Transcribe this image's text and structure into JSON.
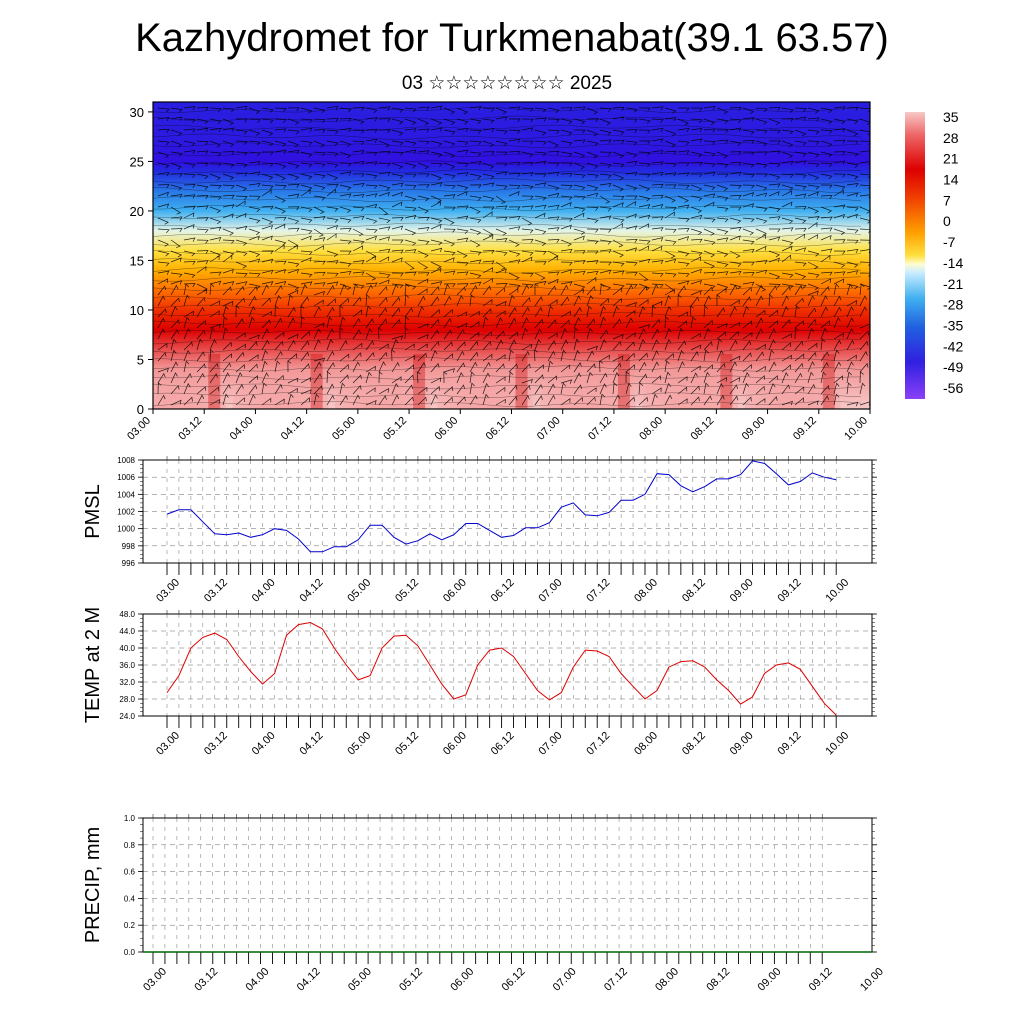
{
  "title": "Kazhydromet for Turkmenabat(39.1 63.57)",
  "subtitle": "03 ☆☆☆☆☆☆☆☆ 2025",
  "chart_data": [
    {
      "type": "heatmap",
      "title": "",
      "ylabel": "",
      "xticks": [
        "03.00",
        "03.12",
        "04.00",
        "04.12",
        "05.00",
        "05.12",
        "06.00",
        "06.12",
        "07.00",
        "07.12",
        "08.00",
        "08.12",
        "09.00",
        "09.12",
        "10.00"
      ],
      "ylim": [
        0,
        31
      ],
      "yticks": [
        0,
        5,
        10,
        15,
        20,
        25,
        30
      ],
      "colorbar": {
        "labels": [
          "35",
          "28",
          "21",
          "14",
          "7",
          "0",
          "-7",
          "-14",
          "-21",
          "-28",
          "-35",
          "-42",
          "-49",
          "-56"
        ],
        "values": [
          35,
          28,
          21,
          14,
          7,
          0,
          -7,
          -14,
          -21,
          -28,
          -35,
          -42,
          -49,
          -56
        ]
      },
      "temperature_profile": [
        {
          "level": 0,
          "value": 35
        },
        {
          "level": 4,
          "value": 32
        },
        {
          "level": 8,
          "value": 24
        },
        {
          "level": 10,
          "value": 18
        },
        {
          "level": 12,
          "value": 12
        },
        {
          "level": 14,
          "value": 5
        },
        {
          "level": 16,
          "value": -2
        },
        {
          "level": 18,
          "value": -10
        },
        {
          "level": 20,
          "value": -20
        },
        {
          "level": 22,
          "value": -32
        },
        {
          "level": 24,
          "value": -46
        },
        {
          "level": 25,
          "value": -55
        },
        {
          "level": 27,
          "value": -52
        },
        {
          "level": 31,
          "value": -50
        }
      ]
    },
    {
      "type": "line",
      "ylabel": "PMSL",
      "ylim": [
        996,
        1008
      ],
      "yticks": [
        "996",
        "998",
        "1000",
        "1002",
        "1004",
        "1006",
        "1008"
      ],
      "xticks": [
        "03.00",
        "03.12",
        "04.00",
        "04.12",
        "05.00",
        "05.12",
        "06.00",
        "06.12",
        "07.00",
        "07.12",
        "08.00",
        "08.12",
        "09.00",
        "09.12",
        "10.00"
      ],
      "color": "#0000cc",
      "x_hours": [
        0,
        3,
        6,
        9,
        12,
        15,
        18,
        21,
        24,
        27,
        30,
        33,
        36,
        39,
        42,
        45,
        48,
        51,
        54,
        57,
        60,
        63,
        66,
        69,
        72,
        75,
        78,
        81,
        84,
        87,
        90,
        93,
        96,
        99,
        102,
        105,
        108,
        111,
        114,
        117,
        120,
        123,
        126,
        129,
        132,
        135,
        138,
        141,
        144,
        147,
        150,
        153,
        156,
        159,
        162,
        165,
        168
      ],
      "values": [
        1001.7,
        1002.2,
        1002.2,
        1000.8,
        999.4,
        999.3,
        999.5,
        999.0,
        999.3,
        1000.0,
        999.8,
        998.8,
        997.3,
        997.3,
        997.9,
        997.9,
        998.7,
        1000.4,
        1000.4,
        999.0,
        998.2,
        998.6,
        999.4,
        998.7,
        999.3,
        1000.6,
        1000.6,
        999.8,
        999.0,
        999.2,
        1000.1,
        1000.1,
        1000.7,
        1002.5,
        1003.0,
        1001.6,
        1001.5,
        1001.9,
        1003.3,
        1003.3,
        1004.0,
        1006.4,
        1006.3,
        1005.0,
        1004.3,
        1004.9,
        1005.8,
        1005.8,
        1006.3,
        1007.9,
        1007.6,
        1006.4,
        1005.1,
        1005.5,
        1006.5,
        1006.0,
        1005.7
      ]
    },
    {
      "type": "line",
      "ylabel": "TEMP at 2 M",
      "ylim": [
        24,
        48
      ],
      "yticks": [
        "24.0",
        "28.0",
        "32.0",
        "36.0",
        "40.0",
        "44.0",
        "48.0"
      ],
      "xticks": [
        "03.00",
        "03.12",
        "04.00",
        "04.12",
        "05.00",
        "05.12",
        "06.00",
        "06.12",
        "07.00",
        "07.12",
        "08.00",
        "08.12",
        "09.00",
        "09.12",
        "10.00"
      ],
      "color": "#dd0000",
      "x_hours": [
        0,
        3,
        6,
        9,
        12,
        15,
        18,
        21,
        24,
        27,
        30,
        33,
        36,
        39,
        42,
        45,
        48,
        51,
        54,
        57,
        60,
        63,
        66,
        69,
        72,
        75,
        78,
        81,
        84,
        87,
        90,
        93,
        96,
        99,
        102,
        105,
        108,
        111,
        114,
        117,
        120,
        123,
        126,
        129,
        132,
        135,
        138,
        141,
        144,
        147,
        150,
        153,
        156,
        159,
        162,
        165,
        168
      ],
      "values": [
        29.5,
        33.5,
        40.0,
        42.5,
        43.5,
        42.0,
        38.0,
        34.5,
        31.5,
        34.0,
        43.0,
        45.5,
        46.0,
        44.5,
        40.0,
        36.0,
        32.5,
        33.5,
        40.0,
        42.8,
        43.0,
        40.5,
        36.0,
        31.5,
        28.0,
        29.0,
        36.0,
        39.5,
        40.0,
        38.0,
        34.0,
        30.0,
        27.8,
        29.5,
        35.5,
        39.5,
        39.3,
        38.0,
        34.0,
        31.0,
        28.0,
        30.0,
        35.5,
        36.8,
        37.0,
        35.5,
        32.5,
        30.0,
        26.8,
        28.5,
        34.0,
        36.0,
        36.5,
        35.0,
        31.0,
        27.0,
        24.2
      ]
    },
    {
      "type": "line",
      "ylabel": "PRECIP, mm",
      "ylim": [
        0,
        1
      ],
      "yticks": [
        "0.0",
        "0.2",
        "0.4",
        "0.6",
        "0.8",
        "1.0"
      ],
      "xticks": [
        "03.00",
        "03.12",
        "04.00",
        "04.12",
        "05.00",
        "05.12",
        "06.00",
        "06.12",
        "07.00",
        "07.12",
        "08.00",
        "08.12",
        "09.00",
        "09.12",
        "10.00"
      ],
      "color": "#006400",
      "values": []
    }
  ]
}
